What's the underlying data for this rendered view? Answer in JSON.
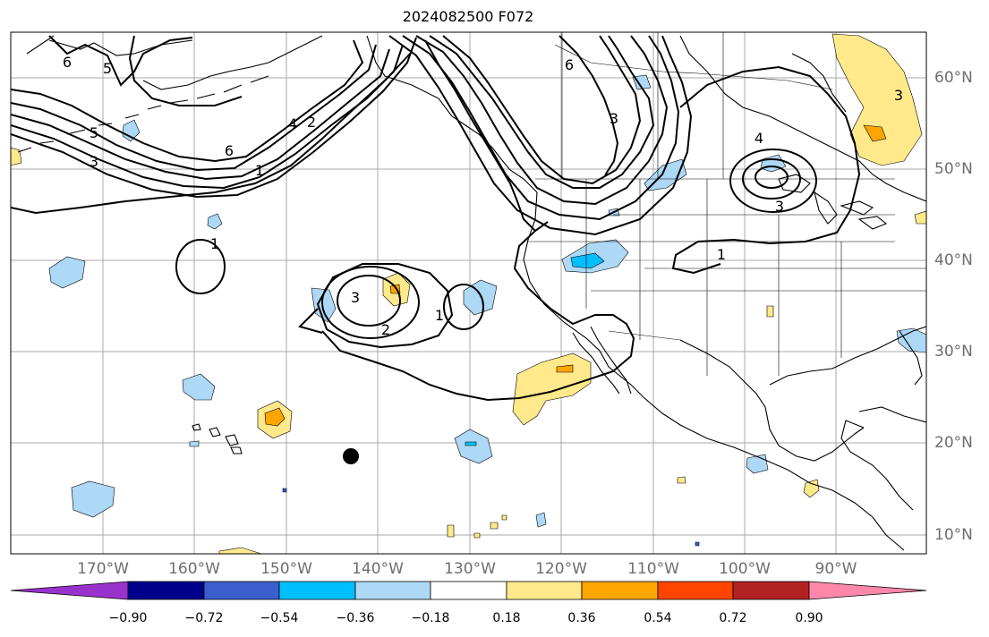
{
  "title": "2024082500 F072",
  "longitude_labels": [
    "170°W",
    "160°W",
    "150°W",
    "140°W",
    "130°W",
    "120°W",
    "110°W",
    "100°W",
    "90°W"
  ],
  "latitude_labels": [
    "60°N",
    "50°N",
    "40°N",
    "30°N",
    "20°N",
    "10°N"
  ],
  "contour_labels": [
    "6",
    "5",
    "5",
    "3",
    "6",
    "4",
    "2",
    "1",
    "1",
    "3",
    "2",
    "1",
    "6",
    "3",
    "4",
    "3",
    "1",
    "3"
  ],
  "colorbar": {
    "ticks": [
      "−0.90",
      "−0.72",
      "−0.54",
      "−0.36",
      "−0.18",
      "0.18",
      "0.36",
      "0.54",
      "0.72",
      "0.90"
    ],
    "colors": [
      "#9932cc",
      "#00008b",
      "#3a5fcd",
      "#00bfff",
      "#add8f6",
      "#ffffff",
      "#ffe98a",
      "#ffa500",
      "#ff4500",
      "#b22222",
      "#ff88aa"
    ]
  },
  "marker": "storm-center-dot"
}
